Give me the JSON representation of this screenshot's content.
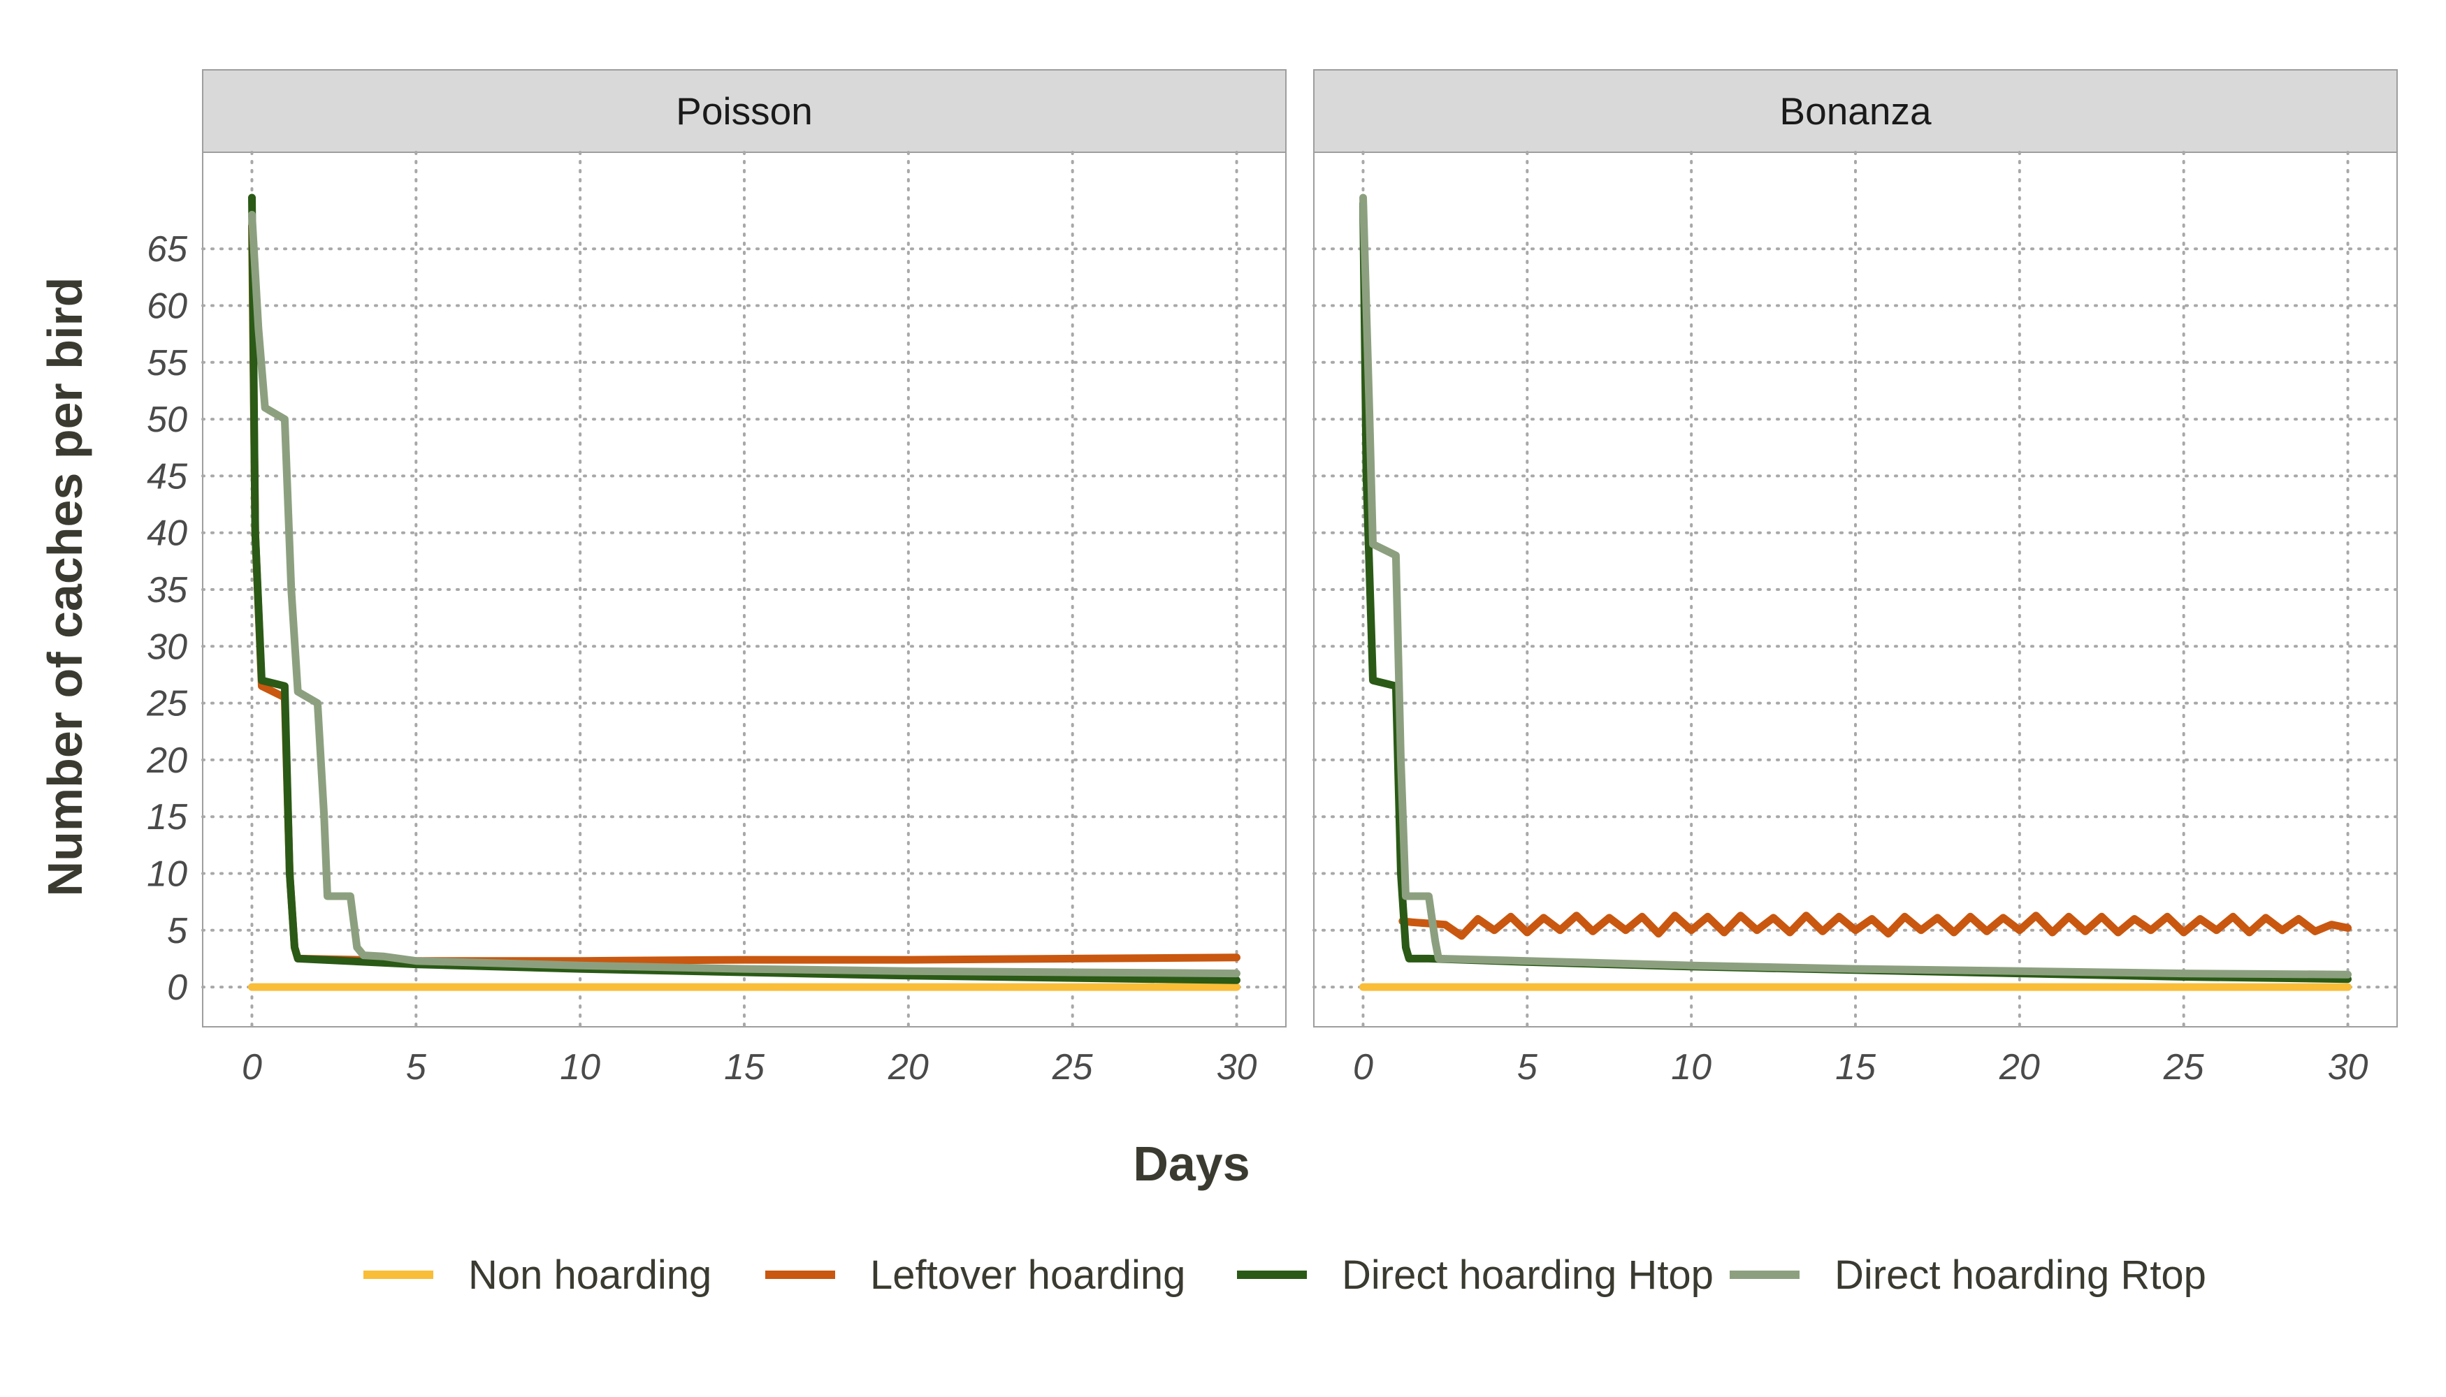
{
  "chart_data": {
    "type": "line",
    "xlabel": "Days",
    "ylabel": "Number of caches per bird",
    "xlim": [
      -1.5,
      31.5
    ],
    "ylim": [
      -3.5,
      73.5
    ],
    "x_ticks": [
      0,
      5,
      10,
      15,
      20,
      25,
      30
    ],
    "y_ticks": [
      0,
      5,
      10,
      15,
      20,
      25,
      30,
      35,
      40,
      45,
      50,
      55,
      60,
      65
    ],
    "grid": true,
    "legend_position": "bottom",
    "series_styles": [
      {
        "name": "Non hoarding",
        "color": "#F9BD38"
      },
      {
        "name": "Leftover hoarding",
        "color": "#C9570F"
      },
      {
        "name": "Direct hoarding Htop",
        "color": "#2A5A16"
      },
      {
        "name": "Direct hoarding Rtop",
        "color": "#8CA07F"
      }
    ],
    "panels": [
      {
        "title": "Poisson",
        "series": [
          {
            "name": "Non hoarding",
            "x": [
              0,
              30
            ],
            "y": [
              0,
              0
            ]
          },
          {
            "name": "Leftover hoarding",
            "x": [
              0,
              0.1,
              0.3,
              1.0,
              1.15,
              1.3,
              1.4,
              5,
              10,
              15,
              20,
              25,
              30
            ],
            "y": [
              67,
              40,
              26.5,
              25.5,
              10,
              3.5,
              2.5,
              2.3,
              2.3,
              2.4,
              2.4,
              2.5,
              2.6
            ]
          },
          {
            "name": "Direct hoarding Htop",
            "x": [
              0,
              0.1,
              0.3,
              1.0,
              1.15,
              1.3,
              1.4,
              5,
              10,
              15,
              20,
              25,
              30
            ],
            "y": [
              69.5,
              40,
              27,
              26.5,
              10,
              3.5,
              2.5,
              2.0,
              1.6,
              1.3,
              1.0,
              0.8,
              0.6
            ]
          },
          {
            "name": "Direct hoarding Rtop",
            "x": [
              0,
              0.2,
              0.4,
              1.0,
              1.2,
              1.4,
              2.0,
              2.2,
              2.3,
              3.0,
              3.2,
              3.4,
              4.0,
              5,
              10,
              15,
              20,
              25,
              30
            ],
            "y": [
              68,
              58,
              51,
              50,
              35,
              26,
              25,
              15,
              8,
              8,
              3.5,
              2.8,
              2.7,
              2.3,
              1.9,
              1.6,
              1.4,
              1.3,
              1.2
            ]
          }
        ]
      },
      {
        "title": "Bonanza",
        "series": [
          {
            "name": "Non hoarding",
            "x": [
              0,
              30
            ],
            "y": [
              0,
              0
            ]
          },
          {
            "name": "Leftover hoarding",
            "x": [
              1.2,
              1.5,
              2.5,
              3,
              3.5,
              4,
              4.5,
              5,
              5.5,
              6,
              6.5,
              7,
              7.5,
              8,
              8.5,
              9,
              9.5,
              10,
              10.5,
              11,
              11.5,
              12,
              12.5,
              13,
              13.5,
              14,
              14.5,
              15,
              15.5,
              16,
              16.5,
              17,
              17.5,
              18,
              18.5,
              19,
              19.5,
              20,
              20.5,
              21,
              21.5,
              22,
              22.5,
              23,
              23.5,
              24,
              24.5,
              25,
              25.5,
              26,
              26.5,
              27,
              27.5,
              28,
              28.5,
              29,
              29.5,
              30
            ],
            "y": [
              5.8,
              5.7,
              5.5,
              4.5,
              6.0,
              5.0,
              6.2,
              4.8,
              6.1,
              5.0,
              6.3,
              4.9,
              6.1,
              5.0,
              6.2,
              4.7,
              6.3,
              5.0,
              6.2,
              4.8,
              6.3,
              5.0,
              6.1,
              4.8,
              6.3,
              4.9,
              6.2,
              5.0,
              6.0,
              4.7,
              6.2,
              5.0,
              6.1,
              4.8,
              6.2,
              4.9,
              6.1,
              5.0,
              6.3,
              4.8,
              6.2,
              4.9,
              6.2,
              4.8,
              6.0,
              5.0,
              6.2,
              4.8,
              6.0,
              5.0,
              6.2,
              4.8,
              6.1,
              5.0,
              6.0,
              4.9,
              5.5,
              5.2
            ]
          },
          {
            "name": "Direct hoarding Htop",
            "x": [
              0,
              0.1,
              0.3,
              1.0,
              1.15,
              1.3,
              1.4,
              2.0,
              5,
              10,
              15,
              20,
              25,
              30
            ],
            "y": [
              69,
              45,
              27,
              26.5,
              10,
              3.5,
              2.5,
              2.5,
              2.2,
              1.8,
              1.5,
              1.2,
              0.9,
              0.7
            ]
          },
          {
            "name": "Direct hoarding Rtop",
            "x": [
              0,
              0.2,
              0.3,
              1.0,
              1.15,
              1.3,
              2.0,
              2.2,
              2.3,
              5,
              10,
              15,
              20,
              25,
              30
            ],
            "y": [
              69.5,
              50,
              39,
              38,
              20,
              8,
              8,
              4,
              2.5,
              2.3,
              1.9,
              1.6,
              1.4,
              1.2,
              1.1
            ]
          }
        ]
      }
    ]
  }
}
